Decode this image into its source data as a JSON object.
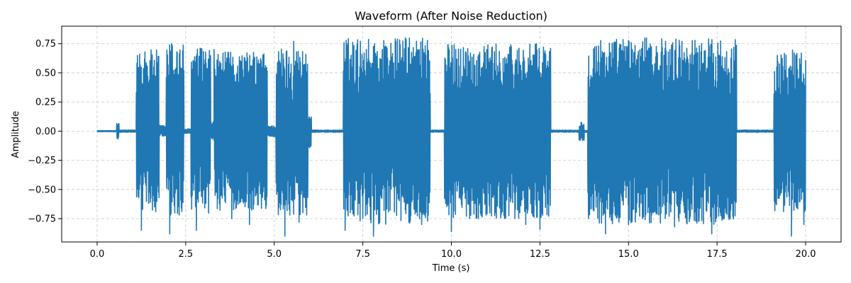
{
  "chart_data": {
    "type": "line",
    "title": "Waveform (After Noise Reduction)",
    "xlabel": "Time (s)",
    "ylabel": "Amplitude",
    "xlim": [
      -1.0,
      21.0
    ],
    "ylim": [
      -0.95,
      0.9
    ],
    "x_ticks": [
      0.0,
      2.5,
      5.0,
      7.5,
      10.0,
      12.5,
      15.0,
      17.5,
      20.0
    ],
    "x_tick_labels": [
      "0.0",
      "2.5",
      "5.0",
      "7.5",
      "10.0",
      "12.5",
      "15.0",
      "17.5",
      "20.0"
    ],
    "y_ticks": [
      -0.75,
      -0.5,
      -0.25,
      0.0,
      0.25,
      0.5,
      0.75
    ],
    "y_tick_labels": [
      "−0.75",
      "−0.50",
      "−0.25",
      "0.00",
      "0.25",
      "0.50",
      "0.75"
    ],
    "grid": true,
    "series_color": "#1f77b4",
    "duration_s": 20.0,
    "envelope_segments": [
      {
        "t_start": 0.0,
        "t_end": 0.55,
        "amplitude": 0.005
      },
      {
        "t_start": 0.55,
        "t_end": 0.62,
        "amplitude": 0.07
      },
      {
        "t_start": 0.62,
        "t_end": 1.1,
        "amplitude": 0.01
      },
      {
        "t_start": 1.1,
        "t_end": 1.75,
        "amplitude": 0.7
      },
      {
        "t_start": 1.75,
        "t_end": 1.95,
        "amplitude": 0.05
      },
      {
        "t_start": 1.95,
        "t_end": 2.45,
        "amplitude": 0.76
      },
      {
        "t_start": 2.45,
        "t_end": 2.65,
        "amplitude": 0.02
      },
      {
        "t_start": 2.65,
        "t_end": 3.2,
        "amplitude": 0.72
      },
      {
        "t_start": 3.2,
        "t_end": 3.3,
        "amplitude": 0.08
      },
      {
        "t_start": 3.3,
        "t_end": 4.8,
        "amplitude": 0.68
      },
      {
        "t_start": 4.8,
        "t_end": 5.05,
        "amplitude": 0.05
      },
      {
        "t_start": 5.05,
        "t_end": 5.95,
        "amplitude": 0.72
      },
      {
        "t_start": 5.95,
        "t_end": 6.05,
        "amplitude": 0.15
      },
      {
        "t_start": 6.05,
        "t_end": 6.95,
        "amplitude": 0.01
      },
      {
        "t_start": 6.95,
        "t_end": 9.4,
        "amplitude": 0.8
      },
      {
        "t_start": 9.4,
        "t_end": 9.8,
        "amplitude": 0.01
      },
      {
        "t_start": 9.8,
        "t_end": 12.8,
        "amplitude": 0.75
      },
      {
        "t_start": 12.8,
        "t_end": 13.6,
        "amplitude": 0.01
      },
      {
        "t_start": 13.6,
        "t_end": 13.75,
        "amplitude": 0.08
      },
      {
        "t_start": 13.75,
        "t_end": 13.85,
        "amplitude": 0.01
      },
      {
        "t_start": 13.85,
        "t_end": 18.05,
        "amplitude": 0.8
      },
      {
        "t_start": 18.05,
        "t_end": 19.1,
        "amplitude": 0.01
      },
      {
        "t_start": 19.1,
        "t_end": 20.0,
        "amplitude": 0.7
      }
    ],
    "peaks": [
      {
        "t": 1.2,
        "y": 0.66
      },
      {
        "t": 1.25,
        "y": -0.85
      },
      {
        "t": 1.35,
        "y": 0.68
      },
      {
        "t": 1.6,
        "y": 0.55
      },
      {
        "t": 2.05,
        "y": -0.88
      },
      {
        "t": 2.1,
        "y": 0.75
      },
      {
        "t": 2.25,
        "y": 0.68
      },
      {
        "t": 2.8,
        "y": -0.85
      },
      {
        "t": 3.3,
        "y": 0.7
      },
      {
        "t": 3.8,
        "y": -0.75
      },
      {
        "t": 4.3,
        "y": -0.8
      },
      {
        "t": 4.7,
        "y": 0.62
      },
      {
        "t": 5.3,
        "y": -0.9
      },
      {
        "t": 5.55,
        "y": 0.77
      },
      {
        "t": 5.7,
        "y": -0.78
      },
      {
        "t": 7.0,
        "y": -0.85
      },
      {
        "t": 7.8,
        "y": -0.9
      },
      {
        "t": 7.65,
        "y": 0.62
      },
      {
        "t": 8.05,
        "y": 0.7
      },
      {
        "t": 8.7,
        "y": 0.8
      },
      {
        "t": 8.8,
        "y": -0.78
      },
      {
        "t": 9.2,
        "y": 0.52
      },
      {
        "t": 10.0,
        "y": -0.86
      },
      {
        "t": 9.9,
        "y": 0.74
      },
      {
        "t": 10.4,
        "y": 0.68
      },
      {
        "t": 11.0,
        "y": 0.7
      },
      {
        "t": 12.1,
        "y": -0.8
      },
      {
        "t": 12.5,
        "y": -0.84
      },
      {
        "t": 14.3,
        "y": 0.67
      },
      {
        "t": 14.35,
        "y": -0.88
      },
      {
        "t": 14.95,
        "y": 0.72
      },
      {
        "t": 14.75,
        "y": 0.69
      },
      {
        "t": 15.0,
        "y": -0.8
      },
      {
        "t": 16.0,
        "y": 0.65
      },
      {
        "t": 16.3,
        "y": -0.82
      },
      {
        "t": 17.3,
        "y": 0.6
      },
      {
        "t": 17.35,
        "y": -0.88
      },
      {
        "t": 17.7,
        "y": 0.51
      },
      {
        "t": 19.4,
        "y": 0.53
      },
      {
        "t": 19.6,
        "y": -0.9
      },
      {
        "t": 19.9,
        "y": 0.42
      },
      {
        "t": 19.95,
        "y": -0.8
      }
    ]
  }
}
